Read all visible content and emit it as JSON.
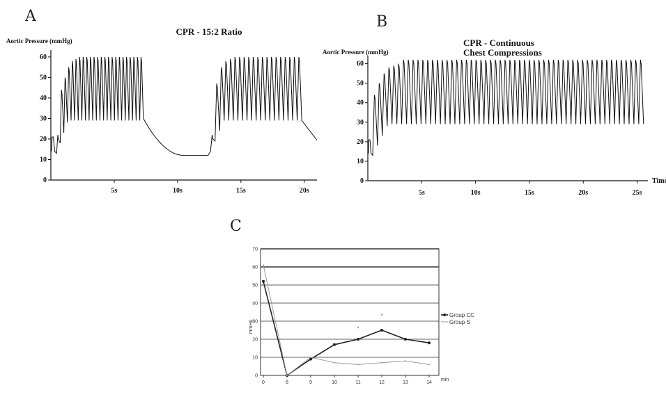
{
  "chart_data": [
    {
      "panel": "A",
      "type": "line",
      "title": "CPR - 15:2 Ratio",
      "ylabel": "Aortic Pressure (mmHg)",
      "xlabel": "",
      "ylim": [
        0,
        62
      ],
      "xlim": [
        0,
        21
      ],
      "yticks": [
        0,
        10,
        20,
        30,
        40,
        50,
        60
      ],
      "xticks": [
        {
          "v": 5,
          "label": "5s"
        },
        {
          "v": 10,
          "label": "10s"
        },
        {
          "v": 15,
          "label": "15s"
        },
        {
          "v": 20,
          "label": "20s"
        }
      ],
      "compression_peaks": [
        22,
        44,
        50,
        55,
        58,
        59,
        60,
        60,
        60,
        60,
        60,
        60,
        60,
        60,
        60,
        60,
        60,
        60,
        60,
        60,
        60,
        60,
        60,
        60
      ],
      "second_run_peaks": [
        22,
        47,
        55,
        58,
        59,
        60,
        60,
        60,
        60,
        60,
        60,
        60,
        60,
        60,
        60,
        60,
        60,
        60,
        60,
        60
      ],
      "pause_min": 12
    },
    {
      "panel": "B",
      "type": "line",
      "title": "CPR - Continuous",
      "subtitle": "Chest Compressions",
      "ylabel": "Aortic Pressure (mmHg)",
      "xlabel": "Time",
      "ylim": [
        0,
        62
      ],
      "xlim": [
        0,
        26
      ],
      "yticks": [
        0,
        10,
        20,
        30,
        40,
        50,
        60
      ],
      "xticks": [
        {
          "v": 5,
          "label": "5s"
        },
        {
          "v": 10,
          "label": "10s"
        },
        {
          "v": 15,
          "label": "15s"
        },
        {
          "v": 20,
          "label": "20s"
        },
        {
          "v": 25,
          "label": "25s"
        }
      ],
      "plateau_peak": 62,
      "plateau_trough": 29
    },
    {
      "panel": "C",
      "type": "line",
      "title": "",
      "ylabel": "mmHg",
      "xlabel": "min",
      "ylim": [
        0,
        70
      ],
      "yticks": [
        0,
        10,
        20,
        30,
        40,
        50,
        60,
        70
      ],
      "categories": [
        "0",
        "8",
        "9",
        "10",
        "11",
        "12",
        "13",
        "14"
      ],
      "series": [
        {
          "name": "Group CC",
          "values": [
            52,
            0,
            9,
            17,
            20,
            25,
            20,
            18
          ],
          "color": "#222222",
          "marker": true
        },
        {
          "name": "Group S",
          "values": [
            61,
            0,
            10,
            7,
            6,
            7,
            8,
            6
          ],
          "color": "#9a9a9a",
          "marker": false
        }
      ],
      "annotations": [
        {
          "x": "11",
          "y": 26,
          "text": "*"
        },
        {
          "x": "12",
          "y": 33,
          "text": "*"
        }
      ]
    }
  ]
}
